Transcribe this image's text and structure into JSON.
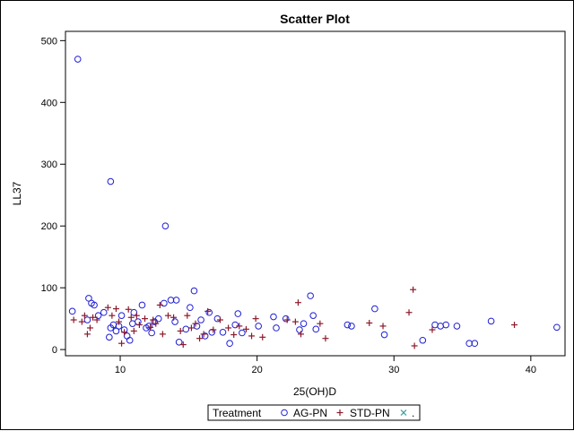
{
  "chart_data": {
    "type": "scatter",
    "title": "Scatter Plot",
    "xlabel": "25(OH)D",
    "ylabel": "LL37",
    "xlim": [
      6,
      42.5
    ],
    "ylim": [
      -10,
      515
    ],
    "x_ticks": [
      10,
      20,
      30,
      40
    ],
    "y_ticks": [
      0,
      100,
      200,
      300,
      400,
      500
    ],
    "grid": false,
    "legend": {
      "placement": "bottom-center",
      "title": "Treatment",
      "entries": [
        {
          "label": "AG-PN",
          "marker": "circle",
          "color": "#1f1fd4"
        },
        {
          "label": "STD-PN",
          "marker": "plus",
          "color": "#8b1a2b"
        },
        {
          "label": ".",
          "marker": "x",
          "color": "#2aa198"
        }
      ]
    },
    "series": [
      {
        "name": "AG-PN",
        "marker": "circle",
        "color": "#1f1fd4",
        "points": [
          [
            6.9,
            470
          ],
          [
            9.3,
            272
          ],
          [
            13.3,
            200
          ],
          [
            6.5,
            62
          ],
          [
            7.7,
            83
          ],
          [
            7.9,
            75
          ],
          [
            8.1,
            72
          ],
          [
            8.4,
            55
          ],
          [
            8.8,
            60
          ],
          [
            7.6,
            48
          ],
          [
            9.2,
            20
          ],
          [
            9.3,
            35
          ],
          [
            9.5,
            40
          ],
          [
            9.7,
            30
          ],
          [
            9.9,
            38
          ],
          [
            10.1,
            55
          ],
          [
            10.3,
            32
          ],
          [
            10.5,
            22
          ],
          [
            10.7,
            15
          ],
          [
            10.9,
            42
          ],
          [
            11.0,
            60
          ],
          [
            11.3,
            45
          ],
          [
            11.6,
            72
          ],
          [
            11.9,
            35
          ],
          [
            12.1,
            38
          ],
          [
            12.3,
            27
          ],
          [
            12.5,
            45
          ],
          [
            12.8,
            50
          ],
          [
            13.2,
            75
          ],
          [
            13.7,
            80
          ],
          [
            14.0,
            45
          ],
          [
            14.1,
            80
          ],
          [
            14.3,
            12
          ],
          [
            14.8,
            33
          ],
          [
            15.1,
            68
          ],
          [
            15.4,
            95
          ],
          [
            15.6,
            38
          ],
          [
            15.9,
            48
          ],
          [
            16.2,
            22
          ],
          [
            16.5,
            60
          ],
          [
            16.7,
            28
          ],
          [
            17.1,
            50
          ],
          [
            17.5,
            28
          ],
          [
            18.0,
            10
          ],
          [
            18.4,
            40
          ],
          [
            18.6,
            58
          ],
          [
            18.9,
            27
          ],
          [
            20.1,
            38
          ],
          [
            21.2,
            53
          ],
          [
            21.4,
            35
          ],
          [
            22.1,
            50
          ],
          [
            23.1,
            32
          ],
          [
            23.4,
            42
          ],
          [
            23.9,
            87
          ],
          [
            24.1,
            55
          ],
          [
            24.3,
            33
          ],
          [
            26.6,
            40
          ],
          [
            26.9,
            38
          ],
          [
            28.6,
            66
          ],
          [
            29.3,
            24
          ],
          [
            32.1,
            15
          ],
          [
            33.0,
            40
          ],
          [
            33.4,
            38
          ],
          [
            33.8,
            40
          ],
          [
            34.6,
            38
          ],
          [
            35.5,
            10
          ],
          [
            35.9,
            10
          ],
          [
            37.1,
            46
          ],
          [
            41.9,
            36
          ]
        ]
      },
      {
        "name": "STD-PN",
        "marker": "plus",
        "color": "#8b1a2b",
        "points": [
          [
            6.6,
            48
          ],
          [
            7.2,
            45
          ],
          [
            7.4,
            55
          ],
          [
            7.6,
            25
          ],
          [
            7.8,
            35
          ],
          [
            8.0,
            52
          ],
          [
            8.3,
            48
          ],
          [
            9.1,
            68
          ],
          [
            9.4,
            55
          ],
          [
            9.7,
            66
          ],
          [
            9.9,
            45
          ],
          [
            10.1,
            10
          ],
          [
            10.3,
            28
          ],
          [
            10.6,
            65
          ],
          [
            10.8,
            52
          ],
          [
            11.0,
            30
          ],
          [
            11.2,
            55
          ],
          [
            11.4,
            40
          ],
          [
            11.8,
            50
          ],
          [
            12.2,
            36
          ],
          [
            12.4,
            48
          ],
          [
            12.6,
            42
          ],
          [
            12.9,
            72
          ],
          [
            13.1,
            25
          ],
          [
            13.5,
            55
          ],
          [
            13.9,
            52
          ],
          [
            14.4,
            30
          ],
          [
            14.6,
            8
          ],
          [
            14.9,
            55
          ],
          [
            15.2,
            35
          ],
          [
            15.5,
            42
          ],
          [
            15.8,
            18
          ],
          [
            16.1,
            25
          ],
          [
            16.4,
            62
          ],
          [
            16.8,
            32
          ],
          [
            17.3,
            48
          ],
          [
            17.9,
            35
          ],
          [
            18.3,
            24
          ],
          [
            18.7,
            38
          ],
          [
            19.2,
            33
          ],
          [
            19.6,
            22
          ],
          [
            19.9,
            50
          ],
          [
            20.4,
            20
          ],
          [
            22.2,
            48
          ],
          [
            22.8,
            45
          ],
          [
            23.0,
            76
          ],
          [
            23.2,
            25
          ],
          [
            24.6,
            42
          ],
          [
            25.0,
            18
          ],
          [
            28.2,
            43
          ],
          [
            29.2,
            38
          ],
          [
            31.1,
            60
          ],
          [
            31.4,
            97
          ],
          [
            31.5,
            6
          ],
          [
            32.8,
            32
          ],
          [
            38.8,
            40
          ]
        ]
      },
      {
        "name": ".",
        "marker": "x",
        "color": "#2aa198",
        "points": []
      }
    ]
  }
}
